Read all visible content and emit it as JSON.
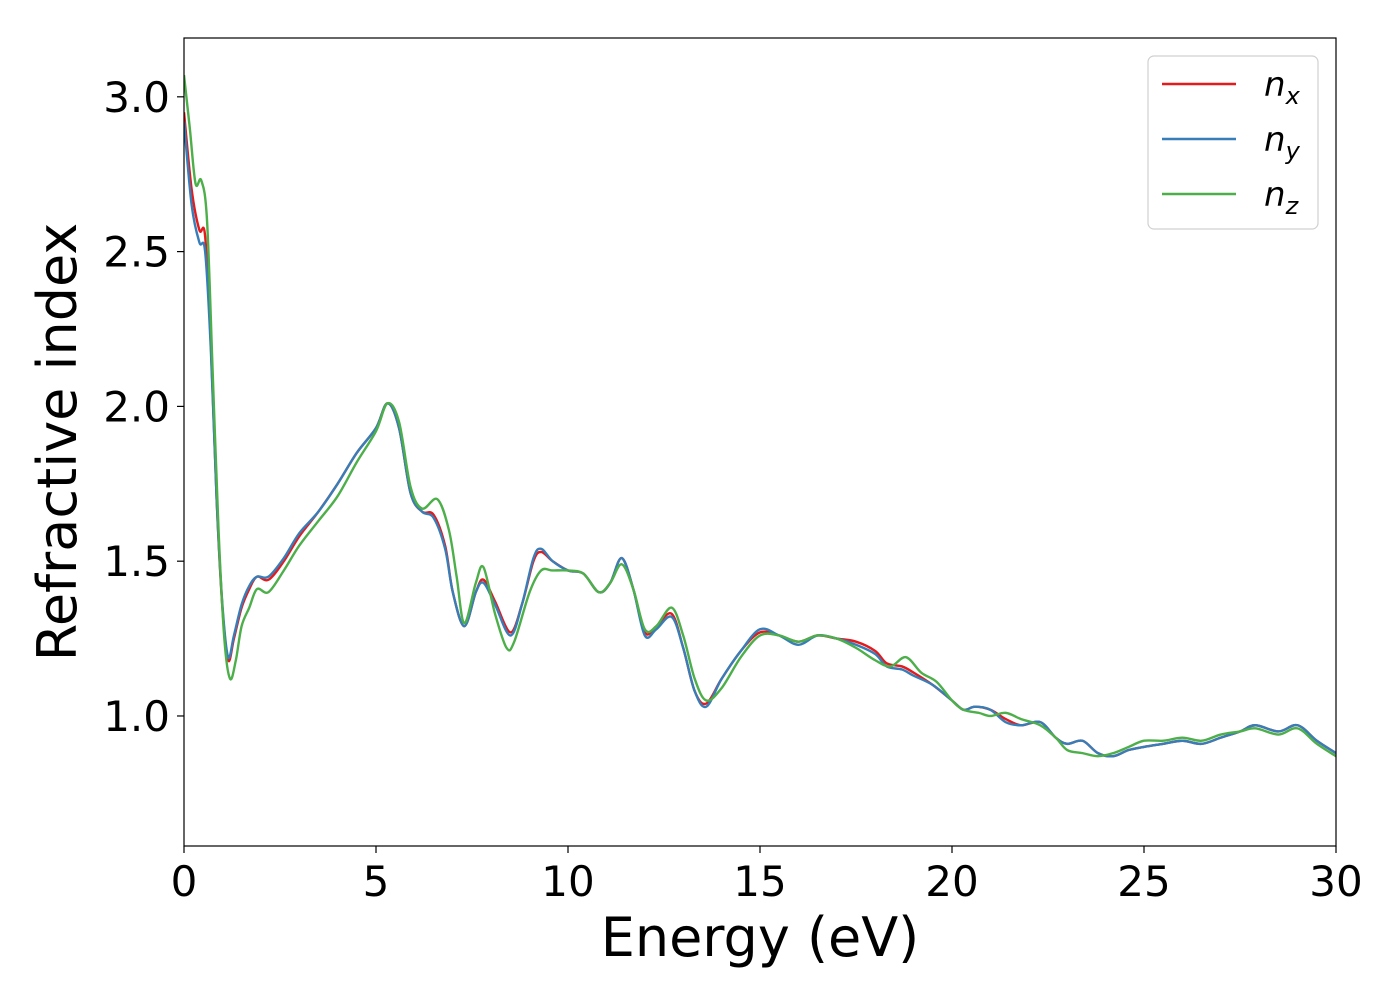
{
  "chart_data": {
    "type": "line",
    "xlabel": "Energy (eV)",
    "ylabel": "Refractive index",
    "xlim": [
      0,
      30
    ],
    "ylim": [
      0.58,
      3.19
    ],
    "xticks": [
      0,
      5,
      10,
      15,
      20,
      25,
      30
    ],
    "xtick_labels": [
      "0",
      "5",
      "10",
      "15",
      "20",
      "25",
      "30"
    ],
    "yticks": [
      1.0,
      1.5,
      2.0,
      2.5,
      3.0
    ],
    "ytick_labels": [
      "1.0",
      "1.5",
      "2.0",
      "2.5",
      "3.0"
    ],
    "grid": false,
    "legend_position": "top-right",
    "series": [
      {
        "name": "n",
        "subscript": "x",
        "color": "#e41a1c",
        "x": [
          0,
          0.2,
          0.4,
          0.55,
          0.7,
          0.85,
          1.0,
          1.15,
          1.3,
          1.5,
          1.7,
          1.9,
          2.2,
          2.6,
          3.0,
          3.5,
          4.0,
          4.5,
          5.0,
          5.3,
          5.6,
          5.9,
          6.2,
          6.5,
          6.8,
          7.0,
          7.3,
          7.6,
          7.8,
          8.1,
          8.5,
          8.8,
          9.1,
          9.3,
          9.6,
          10.0,
          10.4,
          10.8,
          11.1,
          11.4,
          11.7,
          12.0,
          12.3,
          12.7,
          13.0,
          13.3,
          13.6,
          14.0,
          14.5,
          15.0,
          15.5,
          16.0,
          16.5,
          17.0,
          17.5,
          18.0,
          18.3,
          18.7,
          19.0,
          19.5,
          20.0,
          20.3,
          20.6,
          21.0,
          21.4,
          21.8,
          22.3,
          22.7,
          23.0,
          23.4,
          23.8,
          24.2,
          24.6,
          25.0,
          25.5,
          26.0,
          26.5,
          27.0,
          27.5,
          27.9,
          28.5,
          29.0,
          29.5,
          30.0
        ],
        "y": [
          2.95,
          2.7,
          2.57,
          2.55,
          2.2,
          1.7,
          1.35,
          1.18,
          1.25,
          1.35,
          1.41,
          1.45,
          1.44,
          1.5,
          1.58,
          1.66,
          1.75,
          1.85,
          1.93,
          2.01,
          1.93,
          1.72,
          1.66,
          1.65,
          1.55,
          1.4,
          1.29,
          1.4,
          1.44,
          1.37,
          1.27,
          1.36,
          1.5,
          1.53,
          1.5,
          1.47,
          1.46,
          1.4,
          1.43,
          1.51,
          1.41,
          1.27,
          1.29,
          1.33,
          1.22,
          1.08,
          1.04,
          1.12,
          1.21,
          1.27,
          1.26,
          1.24,
          1.26,
          1.25,
          1.24,
          1.21,
          1.17,
          1.16,
          1.14,
          1.1,
          1.05,
          1.02,
          1.03,
          1.02,
          0.99,
          0.97,
          0.98,
          0.93,
          0.91,
          0.92,
          0.88,
          0.87,
          0.89,
          0.9,
          0.91,
          0.92,
          0.91,
          0.93,
          0.95,
          0.97,
          0.95,
          0.97,
          0.92,
          0.88
        ]
      },
      {
        "name": "n",
        "subscript": "y",
        "color": "#377eb8",
        "x": [
          0,
          0.2,
          0.4,
          0.55,
          0.7,
          0.85,
          1.0,
          1.15,
          1.3,
          1.5,
          1.7,
          1.9,
          2.2,
          2.6,
          3.0,
          3.5,
          4.0,
          4.5,
          5.0,
          5.3,
          5.6,
          5.9,
          6.2,
          6.5,
          6.8,
          7.0,
          7.3,
          7.6,
          7.8,
          8.1,
          8.5,
          8.8,
          9.1,
          9.3,
          9.6,
          10.0,
          10.4,
          10.8,
          11.1,
          11.4,
          11.7,
          12.0,
          12.3,
          12.7,
          13.0,
          13.3,
          13.6,
          14.0,
          14.5,
          15.0,
          15.5,
          16.0,
          16.5,
          17.0,
          17.5,
          18.0,
          18.3,
          18.7,
          19.0,
          19.5,
          20.0,
          20.3,
          20.6,
          21.0,
          21.4,
          21.8,
          22.3,
          22.7,
          23.0,
          23.4,
          23.8,
          24.2,
          24.6,
          25.0,
          25.5,
          26.0,
          26.5,
          27.0,
          27.5,
          27.9,
          28.5,
          29.0,
          29.5,
          30.0
        ],
        "y": [
          2.92,
          2.65,
          2.53,
          2.5,
          2.18,
          1.7,
          1.36,
          1.19,
          1.26,
          1.36,
          1.42,
          1.45,
          1.45,
          1.51,
          1.59,
          1.66,
          1.75,
          1.85,
          1.93,
          2.01,
          1.93,
          1.72,
          1.66,
          1.64,
          1.54,
          1.4,
          1.29,
          1.4,
          1.43,
          1.36,
          1.26,
          1.36,
          1.51,
          1.54,
          1.5,
          1.47,
          1.46,
          1.4,
          1.43,
          1.51,
          1.41,
          1.26,
          1.28,
          1.32,
          1.22,
          1.08,
          1.03,
          1.12,
          1.21,
          1.28,
          1.26,
          1.23,
          1.26,
          1.25,
          1.23,
          1.2,
          1.16,
          1.15,
          1.13,
          1.1,
          1.05,
          1.02,
          1.03,
          1.02,
          0.98,
          0.97,
          0.98,
          0.93,
          0.91,
          0.92,
          0.88,
          0.87,
          0.89,
          0.9,
          0.91,
          0.92,
          0.91,
          0.93,
          0.95,
          0.97,
          0.95,
          0.97,
          0.92,
          0.88
        ]
      },
      {
        "name": "n",
        "subscript": "z",
        "color": "#4daf4a",
        "x": [
          0,
          0.15,
          0.3,
          0.45,
          0.6,
          0.75,
          0.9,
          1.05,
          1.2,
          1.35,
          1.5,
          1.7,
          1.9,
          2.2,
          2.6,
          3.0,
          3.5,
          4.0,
          4.5,
          5.0,
          5.3,
          5.6,
          5.9,
          6.2,
          6.6,
          6.9,
          7.1,
          7.3,
          7.6,
          7.8,
          8.1,
          8.4,
          8.6,
          9.0,
          9.3,
          9.6,
          10.0,
          10.4,
          10.8,
          11.1,
          11.4,
          11.7,
          12.0,
          12.3,
          12.7,
          13.0,
          13.3,
          13.6,
          14.0,
          14.5,
          15.0,
          15.5,
          16.0,
          16.5,
          17.0,
          17.5,
          18.0,
          18.4,
          18.8,
          19.2,
          19.6,
          20.0,
          20.3,
          20.7,
          21.0,
          21.4,
          21.8,
          22.3,
          22.7,
          23.0,
          23.4,
          23.8,
          24.2,
          24.6,
          25.0,
          25.5,
          26.0,
          26.5,
          27.0,
          27.5,
          27.9,
          28.5,
          29.0,
          29.5,
          30.0
        ],
        "y": [
          3.07,
          2.9,
          2.72,
          2.73,
          2.6,
          2.1,
          1.6,
          1.25,
          1.12,
          1.18,
          1.29,
          1.35,
          1.41,
          1.4,
          1.47,
          1.55,
          1.63,
          1.71,
          1.82,
          1.92,
          2.01,
          1.95,
          1.74,
          1.67,
          1.7,
          1.6,
          1.45,
          1.3,
          1.43,
          1.48,
          1.33,
          1.22,
          1.24,
          1.4,
          1.47,
          1.47,
          1.47,
          1.46,
          1.4,
          1.43,
          1.49,
          1.41,
          1.28,
          1.29,
          1.35,
          1.26,
          1.12,
          1.05,
          1.09,
          1.19,
          1.26,
          1.26,
          1.24,
          1.26,
          1.25,
          1.22,
          1.18,
          1.16,
          1.19,
          1.14,
          1.11,
          1.05,
          1.02,
          1.01,
          1.0,
          1.01,
          0.99,
          0.97,
          0.93,
          0.89,
          0.88,
          0.87,
          0.88,
          0.9,
          0.92,
          0.92,
          0.93,
          0.92,
          0.94,
          0.95,
          0.96,
          0.94,
          0.96,
          0.91,
          0.87
        ]
      }
    ]
  }
}
